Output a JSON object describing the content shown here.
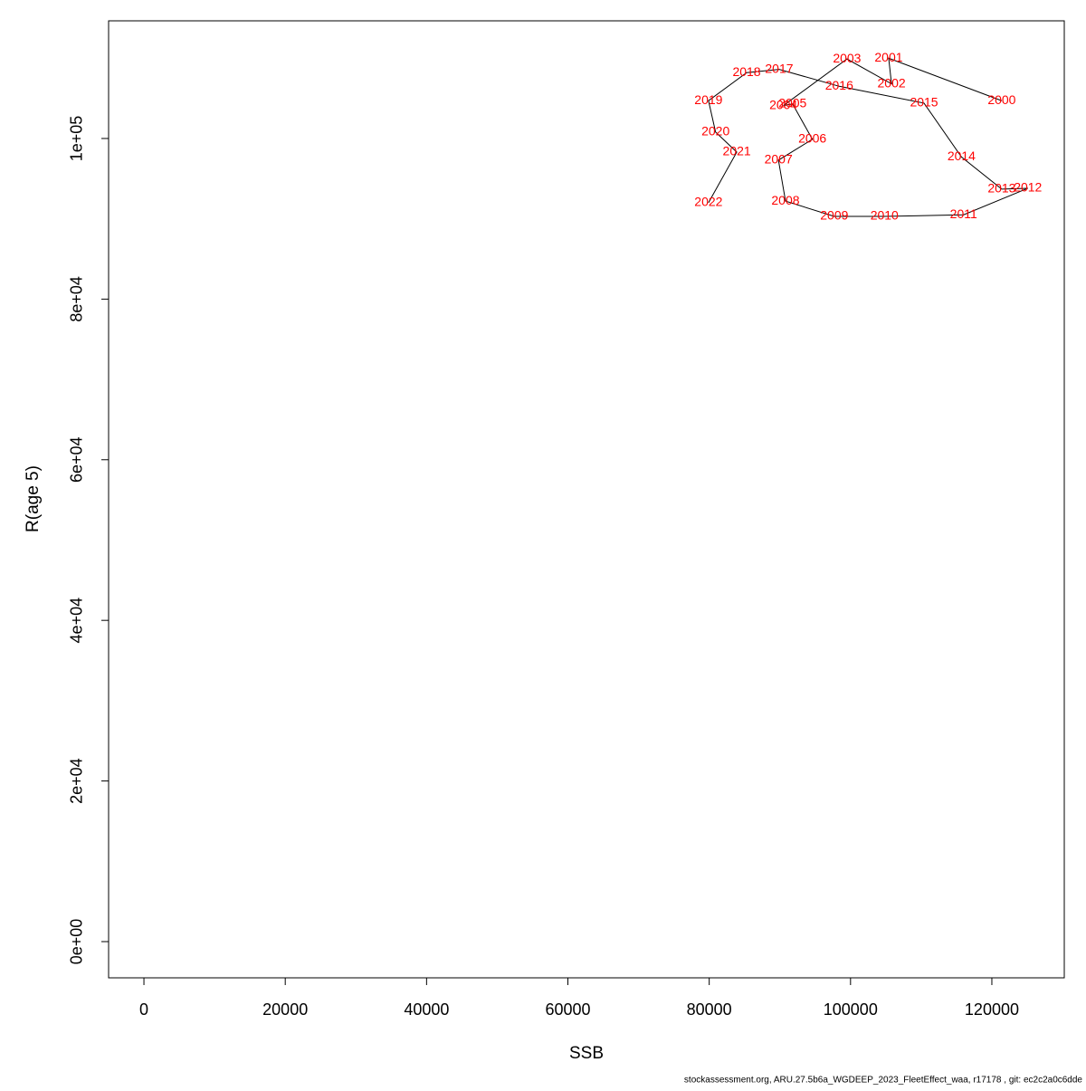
{
  "chart_data": {
    "type": "line",
    "xlabel": "SSB",
    "ylabel": "R(age 5)",
    "footer": "stockassessment.org, ARU.27.5b6a_WGDEEP_2023_FleetEffect_waa, r17178 , git: ec2c2a0c6dde",
    "labels": [
      "2000",
      "2001",
      "2002",
      "2003",
      "2004",
      "2005",
      "2006",
      "2007",
      "2008",
      "2009",
      "2010",
      "2011",
      "2012",
      "2013",
      "2014",
      "2015",
      "2016",
      "2017",
      "2018",
      "2019",
      "2020",
      "2021",
      "2022"
    ],
    "x": [
      121400,
      105400,
      105800,
      99500,
      90500,
      91800,
      94600,
      89800,
      90800,
      97700,
      104800,
      116000,
      125100,
      121400,
      115700,
      110400,
      98400,
      89900,
      85300,
      79900,
      80900,
      83900,
      79900
    ],
    "y": [
      104700,
      110000,
      106800,
      109900,
      104100,
      104300,
      99900,
      97300,
      92200,
      90300,
      90300,
      90500,
      93800,
      93700,
      97700,
      104400,
      106500,
      108600,
      108200,
      104700,
      100800,
      98300,
      92000
    ],
    "line_color": "#000000",
    "label_color": "#ff0000",
    "xlim": [
      -5000,
      130250
    ],
    "ylim": [
      -4510,
      114650
    ],
    "xticks": [
      0,
      20000,
      40000,
      60000,
      80000,
      100000,
      120000
    ],
    "yticks": [
      {
        "value": 0,
        "label": "0e+00"
      },
      {
        "value": 20000,
        "label": "2e+04"
      },
      {
        "value": 40000,
        "label": "4e+04"
      },
      {
        "value": 60000,
        "label": "6e+04"
      },
      {
        "value": 80000,
        "label": "8e+04"
      },
      {
        "value": 100000,
        "label": "1e+05"
      }
    ]
  }
}
